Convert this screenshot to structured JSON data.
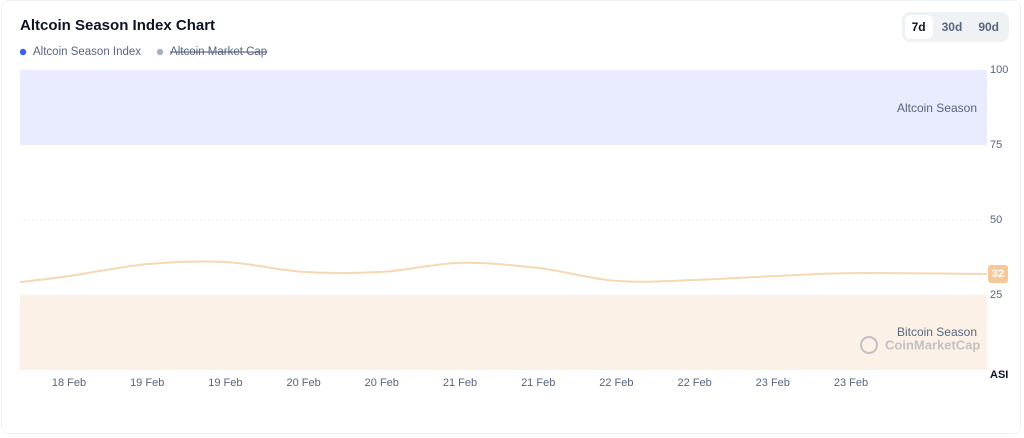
{
  "chart_data": {
    "type": "line",
    "title": "Altcoin Season Index Chart",
    "range_buttons": [
      "7d",
      "30d",
      "90d"
    ],
    "selected_range": 0,
    "categories": [
      null,
      "18 Feb",
      "19 Feb",
      "19 Feb",
      "20 Feb",
      "20 Feb",
      "21 Feb",
      "21 Feb",
      "22 Feb",
      "22 Feb",
      "23 Feb",
      "23 Feb",
      null
    ],
    "series": [
      {
        "name": "Altcoin Season Index",
        "color": "#3861fb",
        "line_color": "#f8d7b4",
        "values": [
          29.3,
          31.3,
          35.3,
          36,
          32.7,
          32.7,
          35.7,
          34,
          29.7,
          30,
          31.3,
          32.3,
          32
        ]
      }
    ],
    "hidden_series": [
      {
        "name": "Altcoin Market Cap",
        "color": "#a6b0c3"
      }
    ],
    "bands": [
      {
        "label": "Altcoin Season",
        "range": [
          75,
          100
        ],
        "color": "#e8ecfd"
      },
      {
        "label": "Bitcoin Season",
        "range": [
          0,
          25
        ],
        "color": "#fcf1e7"
      }
    ],
    "ylim": [
      0,
      100
    ],
    "yticks": [
      25,
      50,
      75,
      100
    ],
    "y_label": "ASI",
    "watermark": "CoinMarketCap",
    "grid": true
  }
}
